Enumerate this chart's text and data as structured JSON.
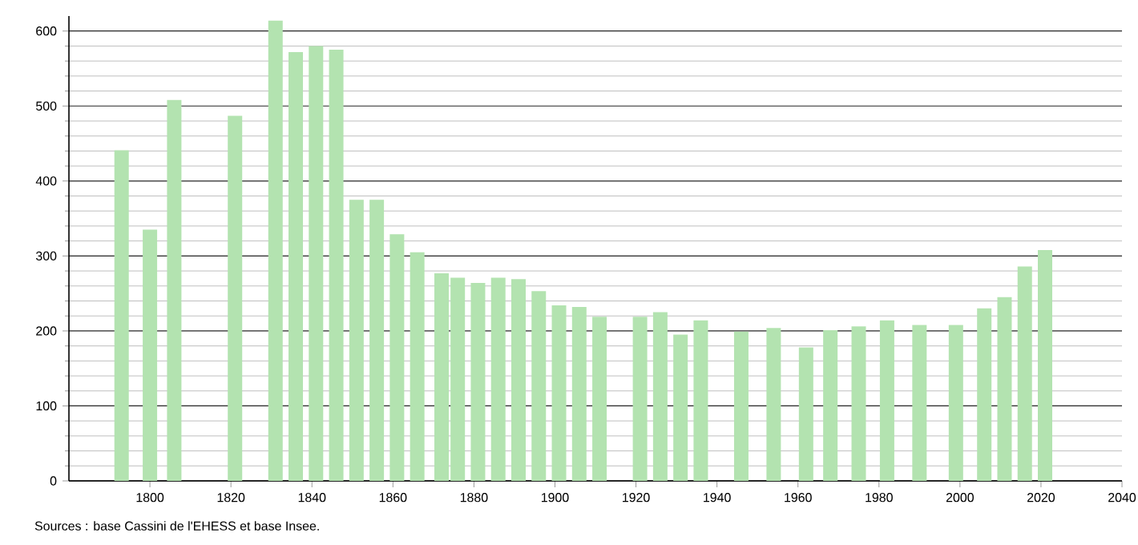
{
  "chart_data": {
    "type": "bar",
    "x": [
      1793,
      1800,
      1806,
      1821,
      1831,
      1836,
      1841,
      1846,
      1851,
      1856,
      1861,
      1866,
      1872,
      1876,
      1881,
      1886,
      1891,
      1896,
      1901,
      1906,
      1911,
      1921,
      1926,
      1931,
      1936,
      1946,
      1954,
      1962,
      1968,
      1975,
      1982,
      1990,
      1999,
      2006,
      2011,
      2016,
      2021
    ],
    "values": [
      441,
      335,
      508,
      487,
      614,
      572,
      580,
      575,
      375,
      375,
      329,
      305,
      277,
      271,
      264,
      271,
      269,
      253,
      234,
      232,
      219,
      219,
      225,
      195,
      214,
      199,
      204,
      178,
      201,
      206,
      214,
      208,
      208,
      230,
      245,
      286,
      308
    ],
    "color": "#b3e3b0",
    "xlim": [
      1780,
      2040
    ],
    "xticks": [
      1800,
      1820,
      1840,
      1860,
      1880,
      1900,
      1920,
      1940,
      1960,
      1980,
      2000,
      2020,
      2040
    ],
    "ylim": [
      0,
      620
    ],
    "yticks": [
      0,
      {
        "value": 20,
        "label": null
      },
      {
        "value": 40,
        "label": null
      },
      {
        "value": 60,
        "label": null
      },
      {
        "value": 80,
        "label": null
      },
      100,
      {
        "value": 120,
        "label": null
      },
      {
        "value": 140,
        "label": null
      },
      {
        "value": 160,
        "label": null
      },
      {
        "value": 180,
        "label": null
      },
      200,
      {
        "value": 220,
        "label": null
      },
      {
        "value": 240,
        "label": null
      },
      {
        "value": 260,
        "label": null
      },
      {
        "value": 280,
        "label": null
      },
      300,
      {
        "value": 320,
        "label": null
      },
      {
        "value": 340,
        "label": null
      },
      {
        "value": 360,
        "label": null
      },
      {
        "value": 380,
        "label": null
      },
      400,
      {
        "value": 420,
        "label": null
      },
      {
        "value": 440,
        "label": null
      },
      {
        "value": 460,
        "label": null
      },
      {
        "value": 480,
        "label": null
      },
      500,
      {
        "value": 520,
        "label": null
      },
      {
        "value": 540,
        "label": null
      },
      {
        "value": 560,
        "label": null
      },
      {
        "value": 580,
        "label": null
      },
      600
    ],
    "grid": "y",
    "annotations": [
      "Sources : base Cassini de l'EHESS et base Insee."
    ]
  }
}
